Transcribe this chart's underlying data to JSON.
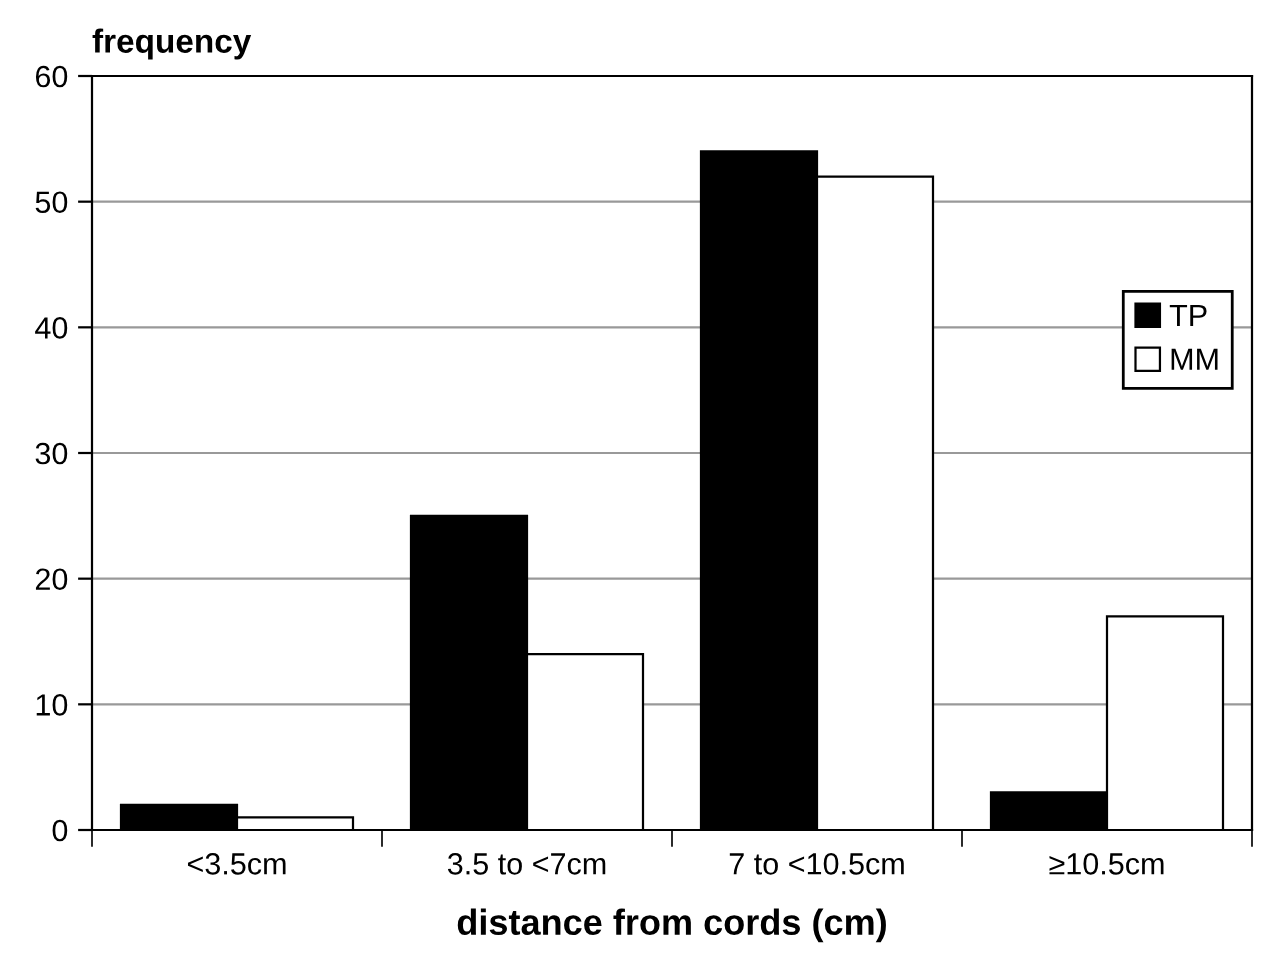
{
  "chart_data": {
    "type": "bar",
    "ylabel": "frequency",
    "xlabel": "distance from cords (cm)",
    "categories": [
      "<3.5cm",
      "3.5 to <7cm",
      "7 to <10.5cm",
      "≥10.5cm"
    ],
    "series": [
      {
        "name": "TP",
        "color": "#000000",
        "values": [
          2,
          25,
          54,
          3
        ]
      },
      {
        "name": "MM",
        "color": "#ffffff",
        "values": [
          1,
          14,
          52,
          17
        ]
      }
    ],
    "ylim": [
      0,
      60
    ],
    "yticks": [
      0,
      10,
      20,
      30,
      40,
      50,
      60
    ],
    "grid": "y",
    "legend": "right"
  }
}
